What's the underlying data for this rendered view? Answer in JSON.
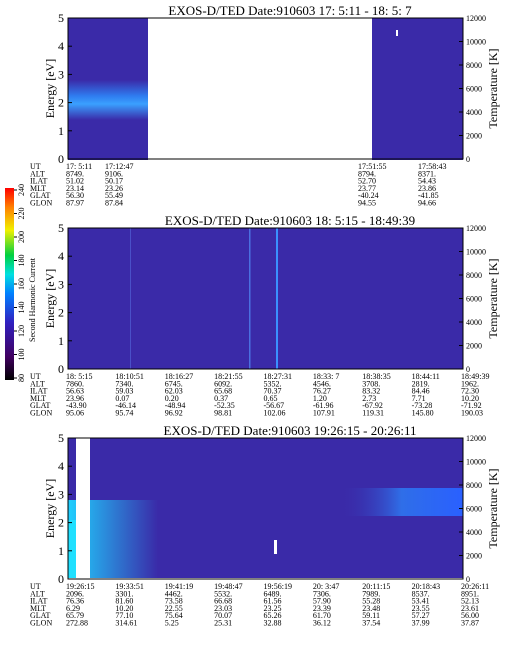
{
  "panels": [
    {
      "title": "EXOS-D/TED   Date:910603  17: 5:11 - 18: 5: 7",
      "y_label": "Energy [eV]",
      "y2_label": "Temperature [K]",
      "ylim": [
        0,
        5
      ],
      "yticks": [
        0,
        1,
        2,
        3,
        4,
        5
      ],
      "y2lim": [
        0,
        12000
      ],
      "y2ticks": [
        0,
        2000,
        4000,
        6000,
        8000,
        10000,
        12000
      ],
      "row_labels": [
        "UT",
        "ALT",
        "ILAT",
        "MLT",
        "GLAT",
        "GLON"
      ],
      "columns": [
        [
          "17: 5:11",
          "8749.",
          "51.02",
          "23.14",
          "56.30",
          "87.97"
        ],
        [
          "17:12:47",
          "9106.",
          "50.17",
          "23.26",
          "55.49",
          "87.84"
        ],
        [
          "17:51:55",
          "8794.",
          "52.70",
          "23.77",
          "-40.24",
          "94.55"
        ],
        [
          "17:58:43",
          "8371.",
          "54.43",
          "23.86",
          "-41.85",
          "94.66"
        ]
      ]
    },
    {
      "title": "EXOS-D/TED   Date:910603  18: 5:15 - 18:49:39",
      "y_label": "Energy [eV]",
      "y2_label": "Temperature [K]",
      "ylim": [
        0,
        5
      ],
      "yticks": [
        0,
        1,
        2,
        3,
        4,
        5
      ],
      "y2lim": [
        0,
        12000
      ],
      "y2ticks": [
        0,
        2000,
        4000,
        6000,
        8000,
        10000,
        12000
      ],
      "row_labels": [
        "UT",
        "ALT",
        "ILAT",
        "MLT",
        "GLAT",
        "GLON"
      ],
      "columns": [
        [
          "18: 5:15",
          "7860.",
          "56.63",
          "23.96",
          "-43.90",
          "95.06"
        ],
        [
          "18:10:51",
          "7340.",
          "59.03",
          "0.07",
          "-46.14",
          "95.74"
        ],
        [
          "18:16:27",
          "6745.",
          "62.03",
          "0.20",
          "-48.94",
          "96.92"
        ],
        [
          "18:21:55",
          "6092.",
          "65.68",
          "0.37",
          "-52.35",
          "98.81"
        ],
        [
          "18:27:31",
          "5352.",
          "70.37",
          "0.65",
          "-56.67",
          "102.06"
        ],
        [
          "18:33: 7",
          "4546.",
          "76.27",
          "1.20",
          "-61.96",
          "107.91"
        ],
        [
          "18:38:35",
          "3708.",
          "83.32",
          "2.73",
          "-67.92",
          "119.31"
        ],
        [
          "18:44:11",
          "2819.",
          "84.46",
          "7.71",
          "-73.28",
          "145.80"
        ],
        [
          "18:49:39",
          "1962.",
          "72.30",
          "10.20",
          "-71.92",
          "190.03"
        ]
      ]
    },
    {
      "title": "EXOS-D/TED   Date:910603  19:26:15 - 20:26:11",
      "y_label": "Energy [eV]",
      "y2_label": "Temperature [K]",
      "ylim": [
        0,
        5
      ],
      "yticks": [
        0,
        1,
        2,
        3,
        4,
        5
      ],
      "y2lim": [
        0,
        12000
      ],
      "y2ticks": [
        0,
        2000,
        4000,
        6000,
        8000,
        10000,
        12000
      ],
      "row_labels": [
        "UT",
        "ALT",
        "ILAT",
        "MLT",
        "GLAT",
        "GLON"
      ],
      "columns": [
        [
          "19:26:15",
          "2096.",
          "76.36",
          "6.29",
          "65.79",
          "272.88"
        ],
        [
          "19:33:51",
          "3301.",
          "81.60",
          "10.20",
          "77.10",
          "314.61"
        ],
        [
          "19:41:19",
          "4462.",
          "73.58",
          "22.55",
          "75.64",
          "5.25"
        ],
        [
          "19:48:47",
          "5532.",
          "66.68",
          "23.03",
          "70.07",
          "25.31"
        ],
        [
          "19:56:19",
          "6489.",
          "61.56",
          "23.25",
          "65.26",
          "32.88"
        ],
        [
          "20: 3:47",
          "7306.",
          "57.90",
          "23.39",
          "61.70",
          "36.12"
        ],
        [
          "20:11:15",
          "7989.",
          "55.28",
          "23.48",
          "59.11",
          "37.54"
        ],
        [
          "20:18:43",
          "8537.",
          "53.41",
          "23.55",
          "57.27",
          "37.99"
        ],
        [
          "20:26:11",
          "8951.",
          "52.13",
          "23.61",
          "56.00",
          "37.87"
        ]
      ]
    }
  ],
  "colorbar": {
    "label": "Second Harmonic Current",
    "lim": [
      80,
      240
    ],
    "ticks": [
      80,
      100,
      120,
      140,
      160,
      180,
      200,
      220,
      240
    ]
  }
}
